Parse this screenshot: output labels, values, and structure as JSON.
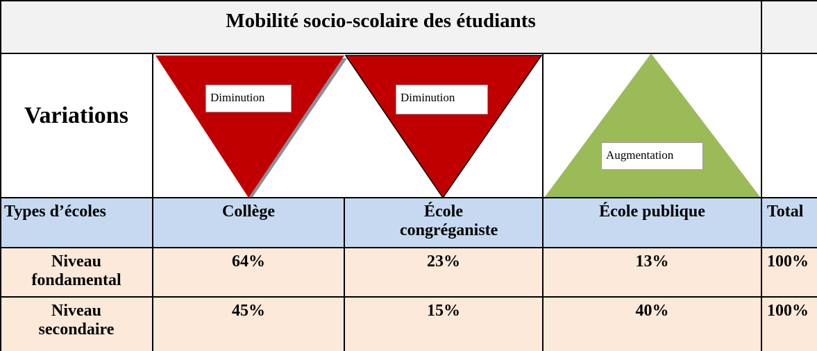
{
  "header": {
    "title": "Mobilité socio-scolaire des étudiants"
  },
  "variations": {
    "label": "Variations",
    "items": [
      "Diminution",
      "Diminution",
      "Augmentation"
    ]
  },
  "table": {
    "columns": [
      "Types d’écoles",
      "Collège",
      "École congréganiste",
      "École publique",
      "Total"
    ],
    "rows": [
      [
        "Niveau fondamental",
        "64%",
        "23%",
        "13%",
        "100%"
      ],
      [
        "Niveau secondaire",
        "45%",
        "15%",
        "40%",
        "100%"
      ]
    ]
  }
}
